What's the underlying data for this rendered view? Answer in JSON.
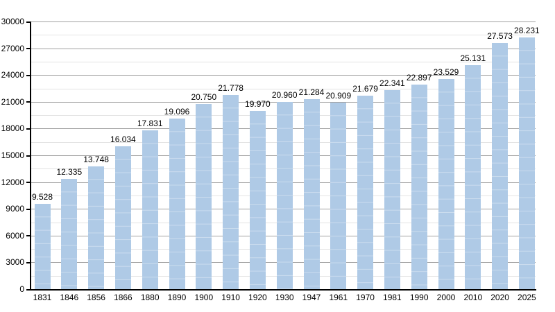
{
  "chart_data": {
    "type": "bar",
    "title": "",
    "xlabel": "",
    "ylabel": "",
    "categories": [
      "1831",
      "1846",
      "1856",
      "1866",
      "1880",
      "1890",
      "1900",
      "1910",
      "1920",
      "1930",
      "1947",
      "1961",
      "1970",
      "1981",
      "1990",
      "2000",
      "2010",
      "2020",
      "2025"
    ],
    "values": [
      9528,
      12335,
      13748,
      16034,
      17831,
      19096,
      20750,
      21778,
      19970,
      20960,
      21284,
      20909,
      21679,
      22341,
      22897,
      23529,
      25131,
      27573,
      28231
    ],
    "value_labels": [
      "9.528",
      "12.335",
      "13.748",
      "16.034",
      "17.831",
      "19.096",
      "20.750",
      "21.778",
      "19.970",
      "20.960",
      "21.284",
      "20.909",
      "21.679",
      "22.341",
      "22.897",
      "23.529",
      "25.131",
      "27.573",
      "28.231"
    ],
    "ylim": [
      0,
      30000
    ],
    "y_major_step": 3000,
    "y_minor_step": 1500,
    "y_tick_labels": [
      "0",
      "3000",
      "6000",
      "9000",
      "12000",
      "15000",
      "18000",
      "21000",
      "24000",
      "27000",
      "30000"
    ],
    "grid": "on",
    "legend": "none",
    "colors": {
      "bar_fill": "#AFCAE6",
      "major_gridline": "#A0A0A0",
      "minor_gridline": "#E3E3E3",
      "axis": "#000000",
      "label_text": "#000000",
      "background": "#FFFFFF"
    }
  }
}
